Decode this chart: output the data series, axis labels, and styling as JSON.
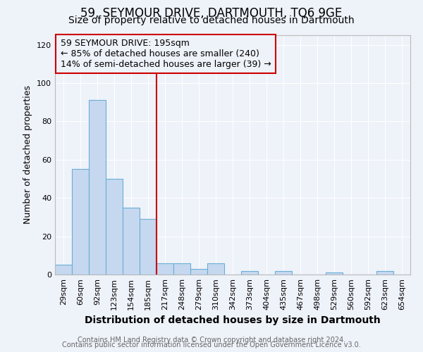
{
  "title": "59, SEYMOUR DRIVE, DARTMOUTH, TQ6 9GE",
  "subtitle": "Size of property relative to detached houses in Dartmouth",
  "xlabel": "Distribution of detached houses by size in Dartmouth",
  "ylabel": "Number of detached properties",
  "bar_labels": [
    "29sqm",
    "60sqm",
    "92sqm",
    "123sqm",
    "154sqm",
    "185sqm",
    "217sqm",
    "248sqm",
    "279sqm",
    "310sqm",
    "342sqm",
    "373sqm",
    "404sqm",
    "435sqm",
    "467sqm",
    "498sqm",
    "529sqm",
    "560sqm",
    "592sqm",
    "623sqm",
    "654sqm"
  ],
  "bar_heights": [
    5,
    55,
    91,
    50,
    35,
    29,
    6,
    6,
    3,
    6,
    0,
    2,
    0,
    2,
    0,
    0,
    1,
    0,
    0,
    2,
    0
  ],
  "bar_color": "#c5d8ef",
  "bar_edge_color": "#6aaed6",
  "vline_x": 5.5,
  "vline_color": "#cc0000",
  "annotation_line1": "59 SEYMOUR DRIVE: 195sqm",
  "annotation_line2": "← 85% of detached houses are smaller (240)",
  "annotation_line3": "14% of semi-detached houses are larger (39) →",
  "box_edge_color": "#cc0000",
  "ylim": [
    0,
    125
  ],
  "yticks": [
    0,
    20,
    40,
    60,
    80,
    100,
    120
  ],
  "footer_line1": "Contains HM Land Registry data © Crown copyright and database right 2024.",
  "footer_line2": "Contains public sector information licensed under the Open Government Licence v3.0.",
  "bg_color": "#eef2f9",
  "plot_bg_color": "#eef2f9",
  "grid_color": "#ffffff",
  "title_fontsize": 12,
  "subtitle_fontsize": 10,
  "xlabel_fontsize": 10,
  "ylabel_fontsize": 9,
  "tick_fontsize": 8,
  "annotation_fontsize": 9,
  "footer_fontsize": 7
}
